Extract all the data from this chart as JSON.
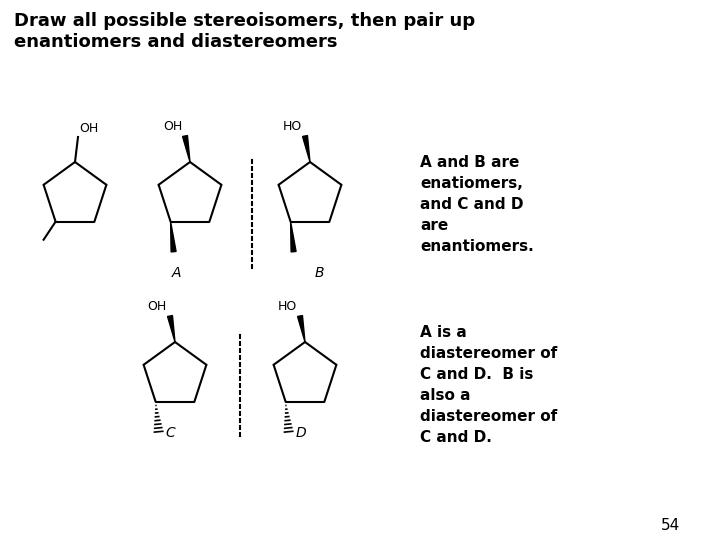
{
  "title": "Draw all possible stereoisomers, then pair up\nenantiomers and diastereomers",
  "title_fontsize": 13,
  "title_fontweight": "bold",
  "text_color": "black",
  "background_color": "white",
  "label_A": "A",
  "label_B": "B",
  "label_C": "C",
  "label_D": "D",
  "text_top_right": "A and B are\nenatiomers,\nand C and D\nare\nenantiomers.",
  "text_bottom_right": "A is a\ndiastereomer of\nC and D.  B is\nalso a\ndiastereomer of\nC and D.",
  "page_number": "54",
  "font_size_labels": 10,
  "font_size_text": 11,
  "font_size_oh": 9
}
